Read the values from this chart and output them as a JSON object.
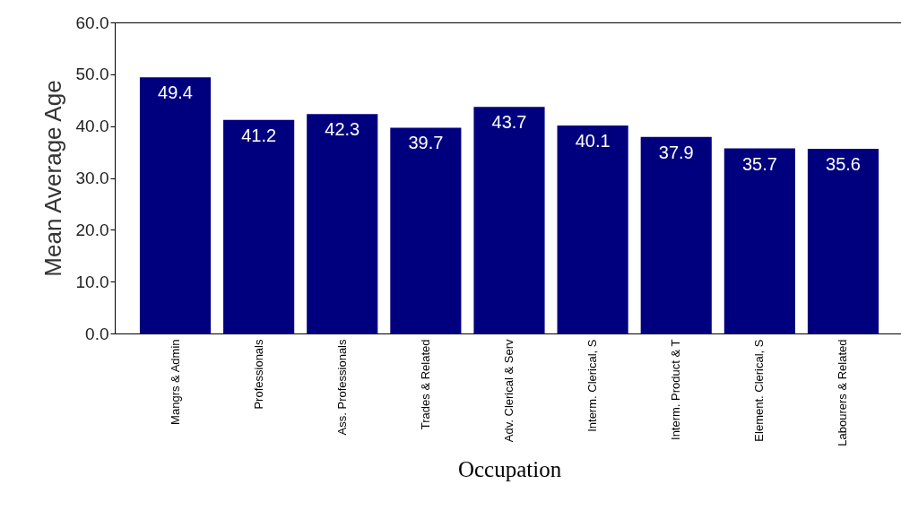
{
  "chart_data": {
    "type": "bar",
    "xlabel": "Occupation",
    "ylabel": "Mean Average Age",
    "categories": [
      "Mangrs & Admin",
      "Professionals",
      "Ass. Professionals",
      "Trades & Related",
      "Adv. Clerical & Serv",
      "Interm. Clerical, S",
      "Interm. Product & T",
      "Element. Clerical, S",
      "Labourers & Related"
    ],
    "values": [
      49.4,
      41.2,
      42.3,
      39.7,
      43.7,
      40.1,
      37.9,
      35.7,
      35.6
    ],
    "color": "#00007f",
    "ylim": [
      0,
      60
    ],
    "yticks": [
      {
        "value": 0,
        "label": "0.0"
      },
      {
        "value": 10,
        "label": "10.0"
      },
      {
        "value": 20,
        "label": "20.0"
      },
      {
        "value": 30,
        "label": "30.0"
      },
      {
        "value": 40,
        "label": "40.0"
      },
      {
        "value": 50,
        "label": "50.0"
      },
      {
        "value": 60,
        "label": "60.0"
      }
    ],
    "data_labels": true
  }
}
